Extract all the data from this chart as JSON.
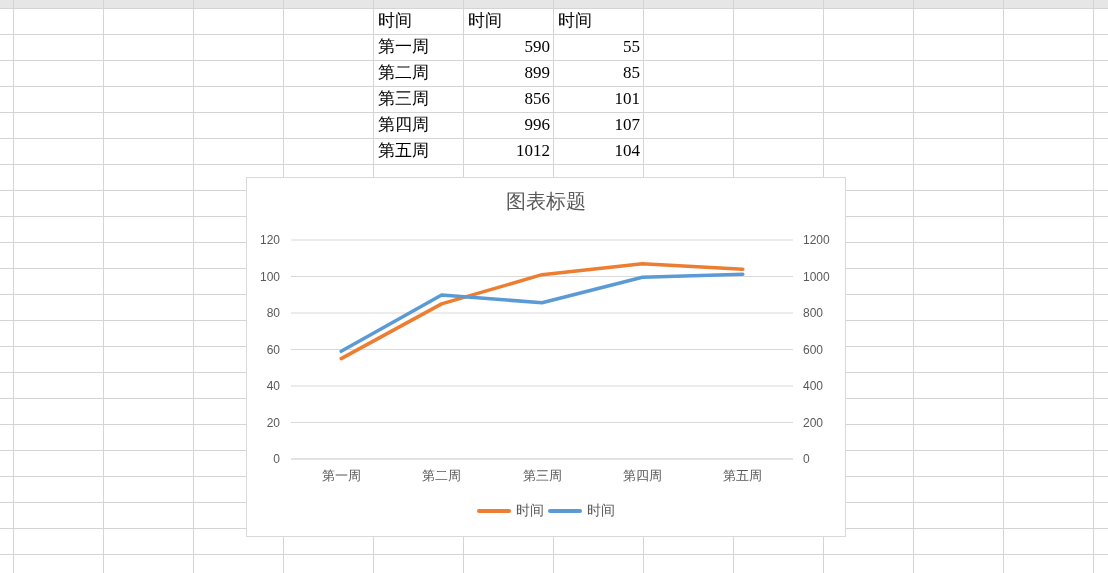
{
  "chart_data": [
    {
      "type": "other",
      "annotations": [
        "时间"
      ],
      "categories": [
        "第一周",
        "第二周",
        "第三周",
        "第四周",
        "第五周"
      ],
      "series": [
        {
          "name": "时间",
          "values": [
            590,
            899,
            856,
            996,
            1012
          ]
        },
        {
          "name": "时间",
          "values": [
            55,
            85,
            101,
            107,
            104
          ]
        }
      ],
      "data_labels": true
    },
    {
      "type": "line",
      "title": "图表标题",
      "categories": [
        "第一周",
        "第二周",
        "第三周",
        "第四周",
        "第五周"
      ],
      "series": [
        {
          "name": "时间",
          "color": "#5b9bd5",
          "values": [
            590,
            899,
            856,
            996,
            1012
          ],
          "axis": "y2"
        },
        {
          "name": "时间",
          "color": "#ed7d31",
          "values": [
            55,
            85,
            101,
            107,
            104
          ],
          "axis": "y"
        }
      ],
      "ylim": [
        0,
        120
      ],
      "yticks": [
        0,
        20,
        40,
        60,
        80,
        100,
        120
      ],
      "y2lim": [
        0,
        1200
      ],
      "y2ticks": [
        0,
        200,
        400,
        600,
        800,
        1000,
        1200
      ],
      "grid": "y",
      "legend": "bottom",
      "marker": "none",
      "line_style": "solid"
    }
  ]
}
